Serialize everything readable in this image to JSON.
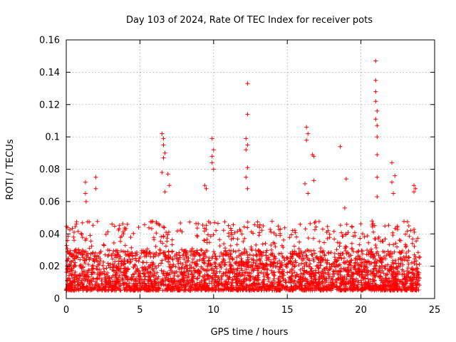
{
  "chart_data": {
    "type": "scatter",
    "title": "Day 103 of 2024, Rate Of TEC Index for receiver pots",
    "xlabel": "GPS time / hours",
    "ylabel": "ROTI / TECUs",
    "xlim": [
      0,
      25
    ],
    "ylim": [
      0,
      0.16
    ],
    "xticks": [
      0,
      5,
      10,
      15,
      20,
      25
    ],
    "xtick_labels": [
      "0",
      "5",
      "10",
      "15",
      "20",
      "25"
    ],
    "yticks": [
      0,
      0.02,
      0.04,
      0.06,
      0.08,
      0.1,
      0.12,
      0.14,
      0.16
    ],
    "ytick_labels": [
      "0",
      "0.02",
      "0.04",
      "0.06",
      "0.08",
      "0.1",
      "0.12",
      "0.14",
      "0.16"
    ],
    "grid": true,
    "marker": "+",
    "marker_color": "#ff0000",
    "data_range_hours": [
      0,
      24
    ],
    "dense_band": [
      0.005,
      0.03
    ],
    "series": [
      {
        "name": "ROTI",
        "note": "dense band of points roughly 0.005 to 0.03 TECU/min across 0-24 h; notable spikes listed",
        "points": [
          {
            "x": 1.3,
            "y": 0.072
          },
          {
            "x": 1.3,
            "y": 0.065
          },
          {
            "x": 1.35,
            "y": 0.06
          },
          {
            "x": 2.0,
            "y": 0.075
          },
          {
            "x": 2.0,
            "y": 0.068
          },
          {
            "x": 6.5,
            "y": 0.102
          },
          {
            "x": 6.6,
            "y": 0.099
          },
          {
            "x": 6.6,
            "y": 0.095
          },
          {
            "x": 6.7,
            "y": 0.09
          },
          {
            "x": 6.6,
            "y": 0.087
          },
          {
            "x": 6.5,
            "y": 0.078
          },
          {
            "x": 6.9,
            "y": 0.077
          },
          {
            "x": 7.0,
            "y": 0.07
          },
          {
            "x": 6.7,
            "y": 0.066
          },
          {
            "x": 9.9,
            "y": 0.099
          },
          {
            "x": 10.0,
            "y": 0.092
          },
          {
            "x": 9.9,
            "y": 0.088
          },
          {
            "x": 9.9,
            "y": 0.084
          },
          {
            "x": 10.0,
            "y": 0.08
          },
          {
            "x": 9.4,
            "y": 0.07
          },
          {
            "x": 9.5,
            "y": 0.068
          },
          {
            "x": 12.3,
            "y": 0.133
          },
          {
            "x": 12.3,
            "y": 0.114
          },
          {
            "x": 12.2,
            "y": 0.099
          },
          {
            "x": 12.3,
            "y": 0.095
          },
          {
            "x": 12.2,
            "y": 0.092
          },
          {
            "x": 12.3,
            "y": 0.081
          },
          {
            "x": 12.2,
            "y": 0.075
          },
          {
            "x": 12.3,
            "y": 0.068
          },
          {
            "x": 16.3,
            "y": 0.106
          },
          {
            "x": 16.4,
            "y": 0.102
          },
          {
            "x": 16.3,
            "y": 0.098
          },
          {
            "x": 16.7,
            "y": 0.089
          },
          {
            "x": 16.8,
            "y": 0.088
          },
          {
            "x": 16.8,
            "y": 0.073
          },
          {
            "x": 16.2,
            "y": 0.071
          },
          {
            "x": 16.4,
            "y": 0.065
          },
          {
            "x": 18.6,
            "y": 0.094
          },
          {
            "x": 19.0,
            "y": 0.074
          },
          {
            "x": 18.9,
            "y": 0.056
          },
          {
            "x": 21.0,
            "y": 0.147
          },
          {
            "x": 21.0,
            "y": 0.135
          },
          {
            "x": 21.0,
            "y": 0.128
          },
          {
            "x": 21.0,
            "y": 0.122
          },
          {
            "x": 21.1,
            "y": 0.116
          },
          {
            "x": 21.0,
            "y": 0.111
          },
          {
            "x": 21.1,
            "y": 0.107
          },
          {
            "x": 21.1,
            "y": 0.1
          },
          {
            "x": 21.1,
            "y": 0.089
          },
          {
            "x": 21.1,
            "y": 0.075
          },
          {
            "x": 21.1,
            "y": 0.063
          },
          {
            "x": 22.1,
            "y": 0.084
          },
          {
            "x": 22.3,
            "y": 0.076
          },
          {
            "x": 22.1,
            "y": 0.072
          },
          {
            "x": 22.2,
            "y": 0.065
          },
          {
            "x": 23.6,
            "y": 0.07
          },
          {
            "x": 23.7,
            "y": 0.068
          },
          {
            "x": 23.6,
            "y": 0.066
          }
        ]
      }
    ]
  }
}
